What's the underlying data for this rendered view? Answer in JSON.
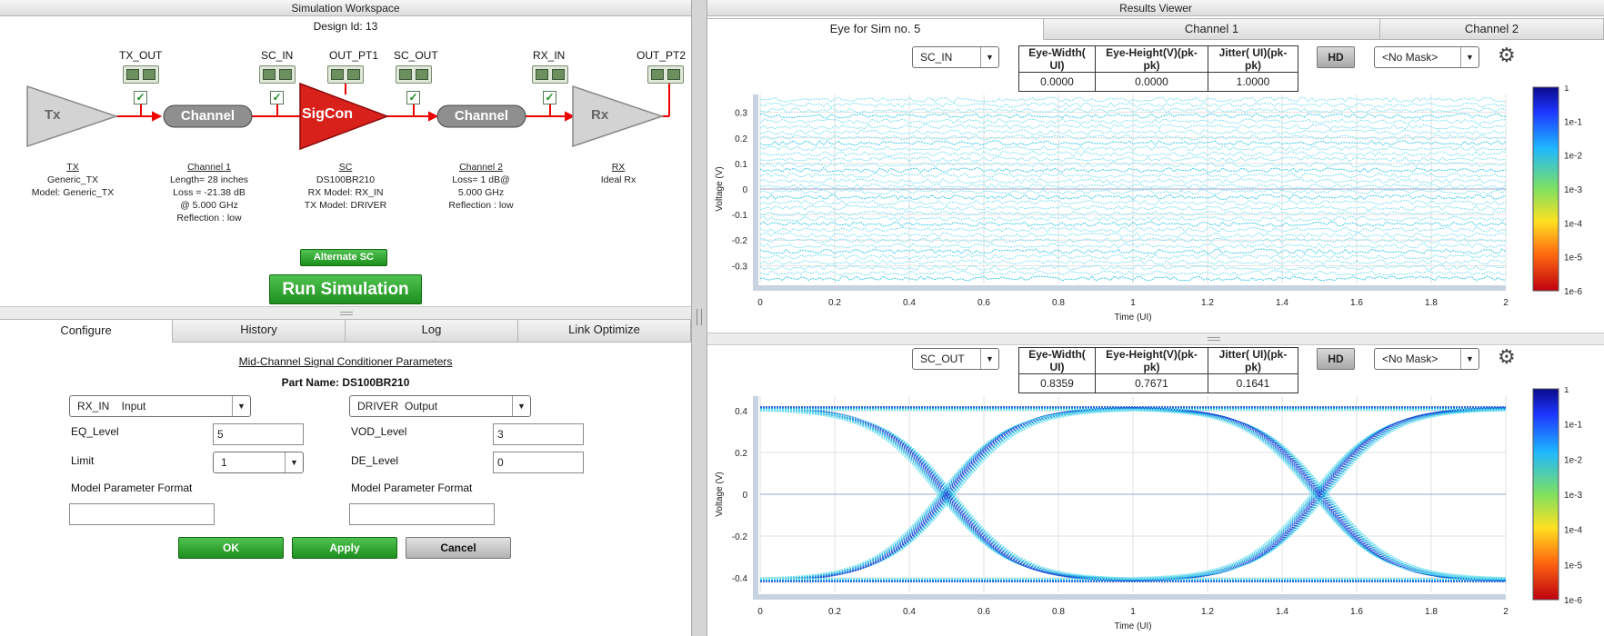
{
  "left": {
    "header": "Simulation Workspace",
    "design_id": "Design Id: 13",
    "schematic": {
      "tx_shape": "Tx",
      "ch1_shape": "Channel",
      "sc_shape": "SigCon",
      "ch2_shape": "Channel",
      "rx_shape": "Rx",
      "probes": [
        "TX_OUT",
        "SC_IN",
        "OUT_PT1",
        "SC_OUT",
        "RX_IN",
        "OUT_PT2"
      ],
      "tx": {
        "title": "TX",
        "l1": "Generic_TX",
        "l2": "Model: Generic_TX"
      },
      "ch1": {
        "title": "Channel 1",
        "l1": "Length= 28 inches",
        "l2": "Loss =  -21.38 dB",
        "l3": "@ 5.000 GHz",
        "l4": "Reflection : low"
      },
      "sc": {
        "title": "SC",
        "l1": "DS100BR210",
        "l2": "RX Model: RX_IN",
        "l3": "TX Model: DRIVER"
      },
      "ch2": {
        "title": "Channel 2",
        "l1": "Loss= 1 dB@",
        "l2": "5.000 GHz",
        "l3": "Reflection : low"
      },
      "rx": {
        "title": "RX",
        "l1": "Ideal Rx"
      }
    },
    "alternate_sc": "Alternate SC",
    "run_simulation": "Run Simulation",
    "tabs": [
      "Configure",
      "History",
      "Log",
      "Link Optimize"
    ],
    "config": {
      "heading": "Mid-Channel Signal Conditioner Parameters",
      "part_name": "Part Name: DS100BR210",
      "rx_select": "RX_IN    Input",
      "tx_select": "DRIVER  Output",
      "eq_label": "EQ_Level",
      "eq_value": "5",
      "limit_label": "Limit",
      "limit_value": "1",
      "vod_label": "VOD_Level",
      "vod_value": "3",
      "de_label": "DE_Level",
      "de_value": "0",
      "mpf_left": "Model Parameter Format",
      "mpf_right": "Model Parameter Format",
      "ok": "OK",
      "apply": "Apply",
      "cancel": "Cancel"
    }
  },
  "right": {
    "header": "Results Viewer",
    "tabs": [
      "Eye for Sim no. 5",
      "Channel 1",
      "Channel 2"
    ],
    "panel1": {
      "select": "SC_IN",
      "metrics_headers": [
        "Eye-Width( UI)",
        "Eye-Height(V)(pk-pk)",
        "Jitter( UI)(pk-pk)"
      ],
      "metrics_values": [
        "0.0000",
        "0.0000",
        "1.0000"
      ],
      "hd": "HD",
      "mask": "<No Mask>"
    },
    "panel2": {
      "select": "SC_OUT",
      "metrics_headers": [
        "Eye-Width( UI)",
        "Eye-Height(V)(pk-pk)",
        "Jitter( UI)(pk-pk)"
      ],
      "metrics_values": [
        "0.8359",
        "0.7671",
        "0.1641"
      ],
      "hd": "HD",
      "mask": "<No Mask>"
    },
    "colorbar_labels": [
      "1",
      "1e-1",
      "1e-2",
      "1e-3",
      "1e-4",
      "1e-5",
      "1e-6"
    ]
  },
  "chart_data": [
    {
      "type": "heatmap",
      "xlabel": "Time (UI)",
      "ylabel": "Voltage (V)",
      "x_ticks": [
        "0",
        "0.2",
        "0.4",
        "0.6",
        "0.8",
        "1",
        "1.2",
        "1.4",
        "1.6",
        "1.8",
        "2"
      ],
      "y_ticks": [
        "0.3",
        "0.2",
        "0.1",
        "0",
        "-0.1",
        "-0.2",
        "-0.3"
      ],
      "xlim": [
        0,
        2
      ],
      "ylim": [
        -0.37,
        0.37
      ],
      "grid": true,
      "eye": "closed",
      "colorscale": [
        "1",
        "1e-1",
        "1e-2",
        "1e-3",
        "1e-4",
        "1e-5",
        "1e-6"
      ]
    },
    {
      "type": "heatmap",
      "xlabel": "Time (UI)",
      "ylabel": "Voltage (V)",
      "x_ticks": [
        "0",
        "0.2",
        "0.4",
        "0.6",
        "0.8",
        "1",
        "1.2",
        "1.4",
        "1.6",
        "1.8",
        "2"
      ],
      "y_ticks": [
        "0.4",
        "0.2",
        "0",
        "-0.2",
        "-0.4"
      ],
      "xlim": [
        0,
        2
      ],
      "ylim": [
        -0.47,
        0.47
      ],
      "grid": true,
      "eye": "open",
      "crossings": [
        0.5,
        1.5
      ],
      "levels": [
        0.42,
        -0.42
      ],
      "colorscale": [
        "1",
        "1e-1",
        "1e-2",
        "1e-3",
        "1e-4",
        "1e-5",
        "1e-6"
      ]
    }
  ]
}
